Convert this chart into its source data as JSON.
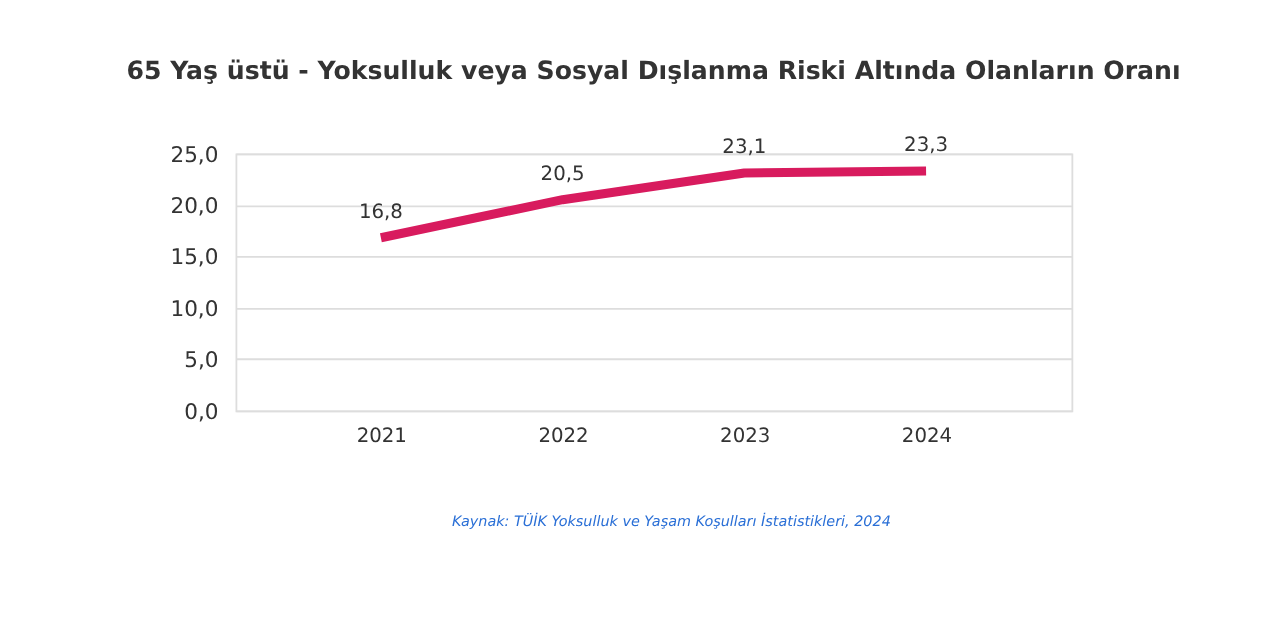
{
  "chart_data": {
    "type": "line",
    "title": "65 Yaş üstü - Yoksulluk veya Sosyal Dışlanma Riski Altında Olanların Oranı",
    "categories": [
      "2021",
      "2022",
      "2023",
      "2024"
    ],
    "series": [
      {
        "color": "#d81b5e",
        "values": [
          16.8,
          20.5,
          23.1,
          23.3
        ],
        "value_labels": [
          "16,8",
          "20,5",
          "23,1",
          "23,3"
        ]
      }
    ],
    "ylim": [
      0,
      25
    ],
    "yticks": [
      {
        "value": 0,
        "label": "0,0"
      },
      {
        "value": 5,
        "label": "5,0"
      },
      {
        "value": 10,
        "label": "10,0"
      },
      {
        "value": 15,
        "label": "15,0"
      },
      {
        "value": 20,
        "label": "20,0"
      },
      {
        "value": 25,
        "label": "25,0"
      }
    ],
    "grid": "y",
    "marker": "none",
    "line_style": "solid",
    "annotations": [
      "Kaynak: TÜİK Yoksulluk ve Yaşam Koşulları İstatistikleri, 2024"
    ]
  }
}
